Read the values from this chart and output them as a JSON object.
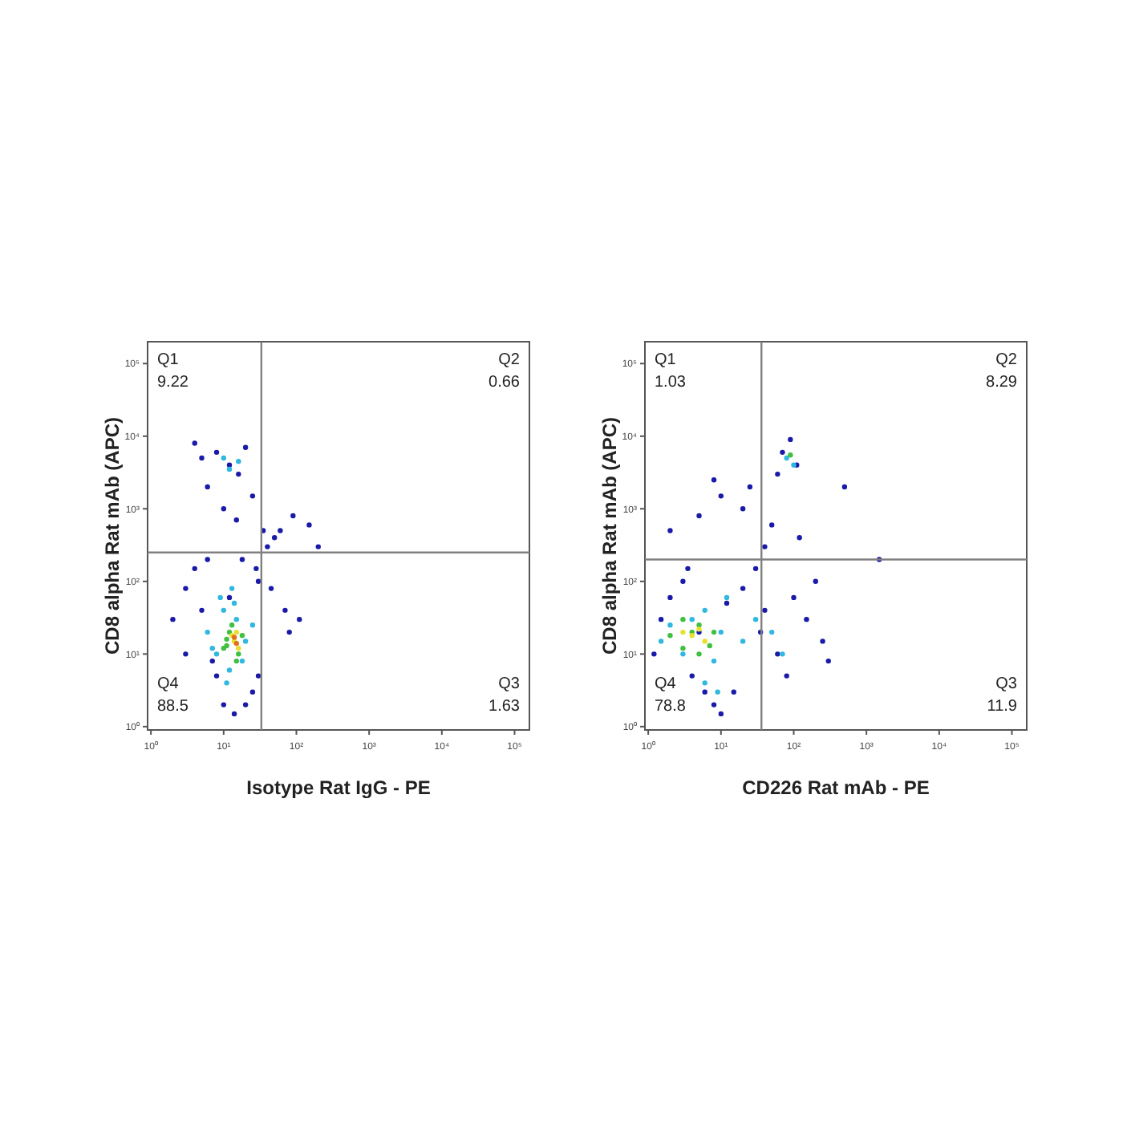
{
  "chart_data": [
    {
      "type": "scatter",
      "xlabel": "Isotype Rat IgG - PE",
      "ylabel": "CD8 alpha Rat mAb (APC)",
      "log": "xy",
      "grid": false,
      "marker": "circle",
      "xlim": [
        0.9,
        160000
      ],
      "ylim": [
        0.9,
        200000
      ],
      "xticks": [
        {
          "value": 1,
          "label": "10⁰"
        },
        {
          "value": 10,
          "label": "10¹"
        },
        {
          "value": 100,
          "label": "10²"
        },
        {
          "value": 1000,
          "label": "10³"
        },
        {
          "value": 10000,
          "label": "10⁴"
        },
        {
          "value": 100000,
          "label": "10⁵"
        }
      ],
      "yticks": [
        {
          "value": 1,
          "label": "10⁰"
        },
        {
          "value": 10,
          "label": "10¹"
        },
        {
          "value": 100,
          "label": "10²"
        },
        {
          "value": 1000,
          "label": "10³"
        },
        {
          "value": 10000,
          "label": "10⁴"
        },
        {
          "value": 100000,
          "label": "10⁵"
        }
      ],
      "ref_lines": [
        {
          "axis": "x",
          "value": 33,
          "color": "#808080"
        },
        {
          "axis": "y",
          "value": 250,
          "color": "#808080"
        }
      ],
      "annotations": [
        "Q1\n9.22",
        "Q2\n0.66",
        "Q3\n1.63",
        "Q4\n88.5"
      ],
      "series": [
        {
          "color": "#1a1aa8",
          "x": [
            2,
            3,
            4,
            6,
            8,
            10,
            14,
            20,
            25,
            30,
            3,
            5,
            7,
            12,
            18,
            28,
            40,
            60,
            90,
            150,
            200,
            70,
            45,
            5,
            8,
            12,
            16,
            20,
            4,
            6,
            10,
            15,
            25,
            35,
            50,
            80,
            110,
            30
          ],
          "values": [
            30,
            80,
            150,
            200,
            5,
            2,
            1.5,
            2,
            3,
            100,
            10,
            40,
            8,
            60,
            200,
            150,
            300,
            500,
            800,
            600,
            300,
            40,
            80,
            5000,
            6000,
            4000,
            3000,
            7000,
            8000,
            2000,
            1000,
            700,
            1500,
            500,
            400,
            20,
            30,
            5
          ]
        },
        {
          "color": "#30b8e0",
          "x": [
            6,
            8,
            10,
            12,
            15,
            20,
            25,
            9,
            11,
            14,
            18,
            7,
            13,
            10,
            12,
            16
          ],
          "values": [
            20,
            10,
            40,
            6,
            30,
            15,
            25,
            60,
            4,
            50,
            8,
            12,
            80,
            5000,
            3500,
            4500
          ]
        },
        {
          "color": "#40c040",
          "x": [
            10,
            12,
            11,
            16,
            18,
            13,
            15,
            11
          ],
          "values": [
            12,
            20,
            13,
            10,
            18,
            25,
            8,
            16
          ]
        },
        {
          "color": "#e8e030",
          "x": [
            14,
            16,
            13,
            15
          ],
          "values": [
            15,
            12,
            18,
            20
          ]
        },
        {
          "color": "#e07020",
          "x": [
            15,
            14
          ],
          "values": [
            14,
            17
          ]
        }
      ]
    },
    {
      "type": "scatter",
      "xlabel": "CD226 Rat mAb - PE",
      "ylabel": "CD8 alpha Rat mAb (APC)",
      "log": "xy",
      "grid": false,
      "marker": "circle",
      "xlim": [
        0.9,
        160000
      ],
      "ylim": [
        0.9,
        200000
      ],
      "xticks": [
        {
          "value": 1,
          "label": "10⁰"
        },
        {
          "value": 10,
          "label": "10¹"
        },
        {
          "value": 100,
          "label": "10²"
        },
        {
          "value": 1000,
          "label": "10³"
        },
        {
          "value": 10000,
          "label": "10⁴"
        },
        {
          "value": 100000,
          "label": "10⁵"
        }
      ],
      "yticks": [
        {
          "value": 1,
          "label": "10⁰"
        },
        {
          "value": 10,
          "label": "10¹"
        },
        {
          "value": 100,
          "label": "10²"
        },
        {
          "value": 1000,
          "label": "10³"
        },
        {
          "value": 10000,
          "label": "10⁴"
        },
        {
          "value": 100000,
          "label": "10⁵"
        }
      ],
      "ref_lines": [
        {
          "axis": "x",
          "value": 36,
          "color": "#808080"
        },
        {
          "axis": "y",
          "value": 200,
          "color": "#808080"
        }
      ],
      "annotations": [
        "Q1\n1.03",
        "Q2\n8.29",
        "Q3\n11.9",
        "Q4\n78.8"
      ],
      "series": [
        {
          "color": "#1a1aa8",
          "x": [
            1.2,
            1.5,
            2,
            3,
            4,
            6,
            8,
            10,
            15,
            20,
            30,
            40,
            60,
            80,
            100,
            150,
            200,
            300,
            2,
            5,
            10,
            25,
            50,
            120,
            70,
            90,
            110,
            60,
            40,
            20,
            8,
            3.5,
            500,
            1500,
            5,
            12,
            35,
            250
          ],
          "values": [
            10,
            30,
            60,
            100,
            5,
            3,
            2,
            1.5,
            3,
            80,
            150,
            40,
            10,
            5,
            60,
            30,
            100,
            8,
            500,
            800,
            1500,
            2000,
            600,
            400,
            6000,
            9000,
            4000,
            3000,
            300,
            1000,
            2500,
            150,
            2000,
            200,
            20,
            50,
            20,
            15
          ]
        },
        {
          "color": "#30b8e0",
          "x": [
            1.5,
            2,
            3,
            4,
            6,
            8,
            10,
            12,
            20,
            30,
            50,
            70,
            80,
            100,
            6,
            9
          ],
          "values": [
            15,
            25,
            10,
            30,
            40,
            8,
            20,
            60,
            15,
            30,
            20,
            10,
            5000,
            4000,
            4,
            3
          ]
        },
        {
          "color": "#40c040",
          "x": [
            2,
            3,
            4,
            5,
            7,
            8,
            3,
            5,
            90
          ],
          "values": [
            18,
            12,
            20,
            25,
            13,
            20,
            30,
            10,
            5500
          ]
        },
        {
          "color": "#e8e030",
          "x": [
            4,
            5,
            6,
            3
          ],
          "values": [
            18,
            22,
            15,
            20
          ]
        }
      ]
    }
  ]
}
